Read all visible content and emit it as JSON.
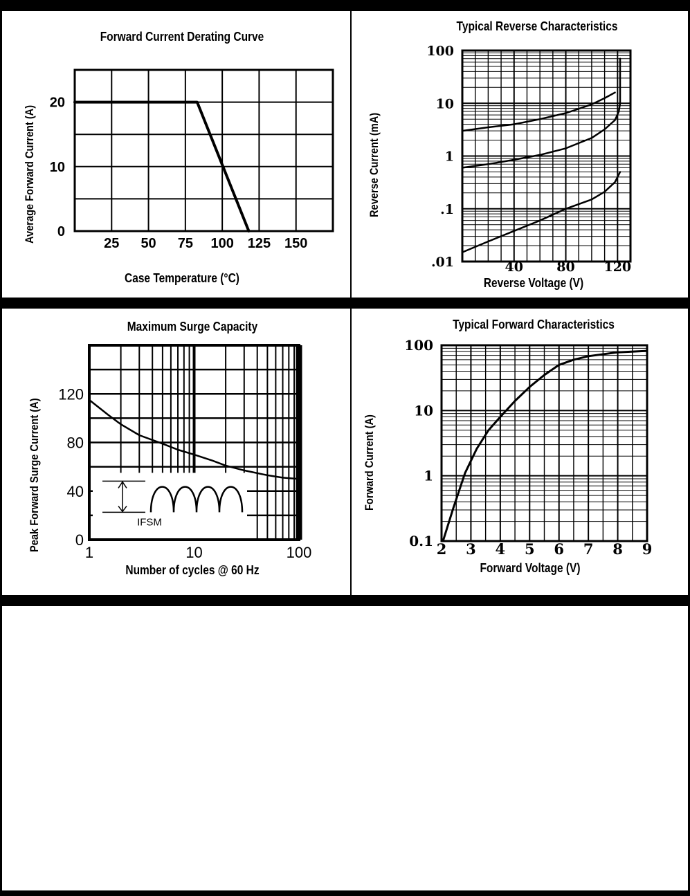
{
  "charts": [
    {
      "id": "derating",
      "title": "Forward Current Derating Curve",
      "xlabel": "Case Temperature (°C)",
      "ylabel": "Average Forward Current (A)",
      "chart_data": {
        "type": "line",
        "title": "Forward Current Derating Curve",
        "xlabel": "Case Temperature (°C)",
        "ylabel": "Average Forward Current (A)",
        "xlim": [
          0,
          175
        ],
        "ylim": [
          0,
          25
        ],
        "x_ticks": [
          "25",
          "50",
          "75",
          "100",
          "125",
          "150"
        ],
        "y_ticks": [
          "0",
          "10",
          "20"
        ],
        "grid": true,
        "series": [
          {
            "x": [
              0,
              83,
              118
            ],
            "y": [
              20,
              20,
              0
            ]
          }
        ]
      }
    },
    {
      "id": "reverse",
      "title": "Typical Reverse Characteristics",
      "xlabel": "Reverse Voltage (V)",
      "ylabel": "Reverse Current (mA)",
      "chart_data": {
        "type": "line",
        "title": "Typical Reverse Characteristics",
        "xlabel": "Reverse Voltage (V)",
        "ylabel": "Reverse Current (mA)",
        "xscale": "linear",
        "yscale": "log",
        "xlim": [
          0,
          130
        ],
        "ylim": [
          0.01,
          100
        ],
        "x_ticks": [
          "40",
          "80",
          "120"
        ],
        "y_ticks": [
          ".01",
          ".1",
          "1",
          "10",
          "100"
        ],
        "grid": true,
        "series": [
          {
            "x": [
              0,
              20,
              40,
              60,
              80,
              100,
              110,
              118
            ],
            "y": [
              3,
              3.5,
              4,
              5,
              6.5,
              9.5,
              12.5,
              16
            ]
          },
          {
            "x": [
              0,
              20,
              40,
              60,
              80,
              100,
              110,
              118,
              121,
              122,
              122
            ],
            "y": [
              0.6,
              0.7,
              0.85,
              1.05,
              1.4,
              2.2,
              3.2,
              4.8,
              7,
              10,
              70
            ]
          },
          {
            "x": [
              0,
              20,
              40,
              60,
              80,
              100,
              110,
              118,
              122
            ],
            "y": [
              0.015,
              0.024,
              0.038,
              0.06,
              0.1,
              0.15,
              0.21,
              0.32,
              0.5
            ]
          }
        ]
      }
    },
    {
      "id": "surge",
      "title": "Maximum Surge Capacity",
      "xlabel": "Number of cycles @ 60 Hz",
      "ylabel": "Peak Forward Surge Current (A)",
      "inset_label": "IFSM",
      "chart_data": {
        "type": "line",
        "title": "Maximum Surge Capacity",
        "xlabel": "Number of cycles @ 60 Hz",
        "ylabel": "Peak Forward Surge Current (A)",
        "xscale": "log",
        "yscale": "linear",
        "xlim": [
          1,
          100
        ],
        "ylim": [
          0,
          160
        ],
        "x_ticks": [
          "1",
          "10",
          "100"
        ],
        "y_ticks": [
          "0",
          "40",
          "80",
          "120"
        ],
        "grid": true,
        "series": [
          {
            "x": [
              1,
              1.5,
              2,
              3,
              5,
              7,
              10,
              15,
              20,
              30,
              50,
              70,
              100
            ],
            "y": [
              115,
              103,
              95,
              86,
              79,
              74,
              70,
              65,
              61,
              57,
              53,
              51,
              50
            ]
          }
        ]
      }
    },
    {
      "id": "forward",
      "title": "Typical Forward Characteristics",
      "xlabel": "Forward Voltage (V)",
      "ylabel": "Forward Current (A)",
      "chart_data": {
        "type": "line",
        "title": "Typical Forward Characteristics",
        "xlabel": "Forward Voltage (V)",
        "ylabel": "Forward Current (A)",
        "xscale": "linear",
        "yscale": "log",
        "xlim": [
          2,
          9
        ],
        "ylim": [
          0.1,
          100
        ],
        "x_ticks": [
          "2",
          "3",
          "4",
          "5",
          "6",
          "7",
          "8",
          "9"
        ],
        "y_ticks": [
          "0.1",
          "1",
          "10",
          "100"
        ],
        "grid": true,
        "series": [
          {
            "x": [
              2.05,
              2.4,
              2.8,
              3.2,
              3.6,
              4,
              4.5,
              5,
              5.5,
              6,
              6.5,
              7,
              8,
              9
            ],
            "y": [
              0.1,
              0.32,
              1.1,
              2.6,
              5,
              8,
              14,
              23,
              35,
              50,
              60,
              68,
              78,
              82
            ]
          }
        ]
      }
    }
  ]
}
